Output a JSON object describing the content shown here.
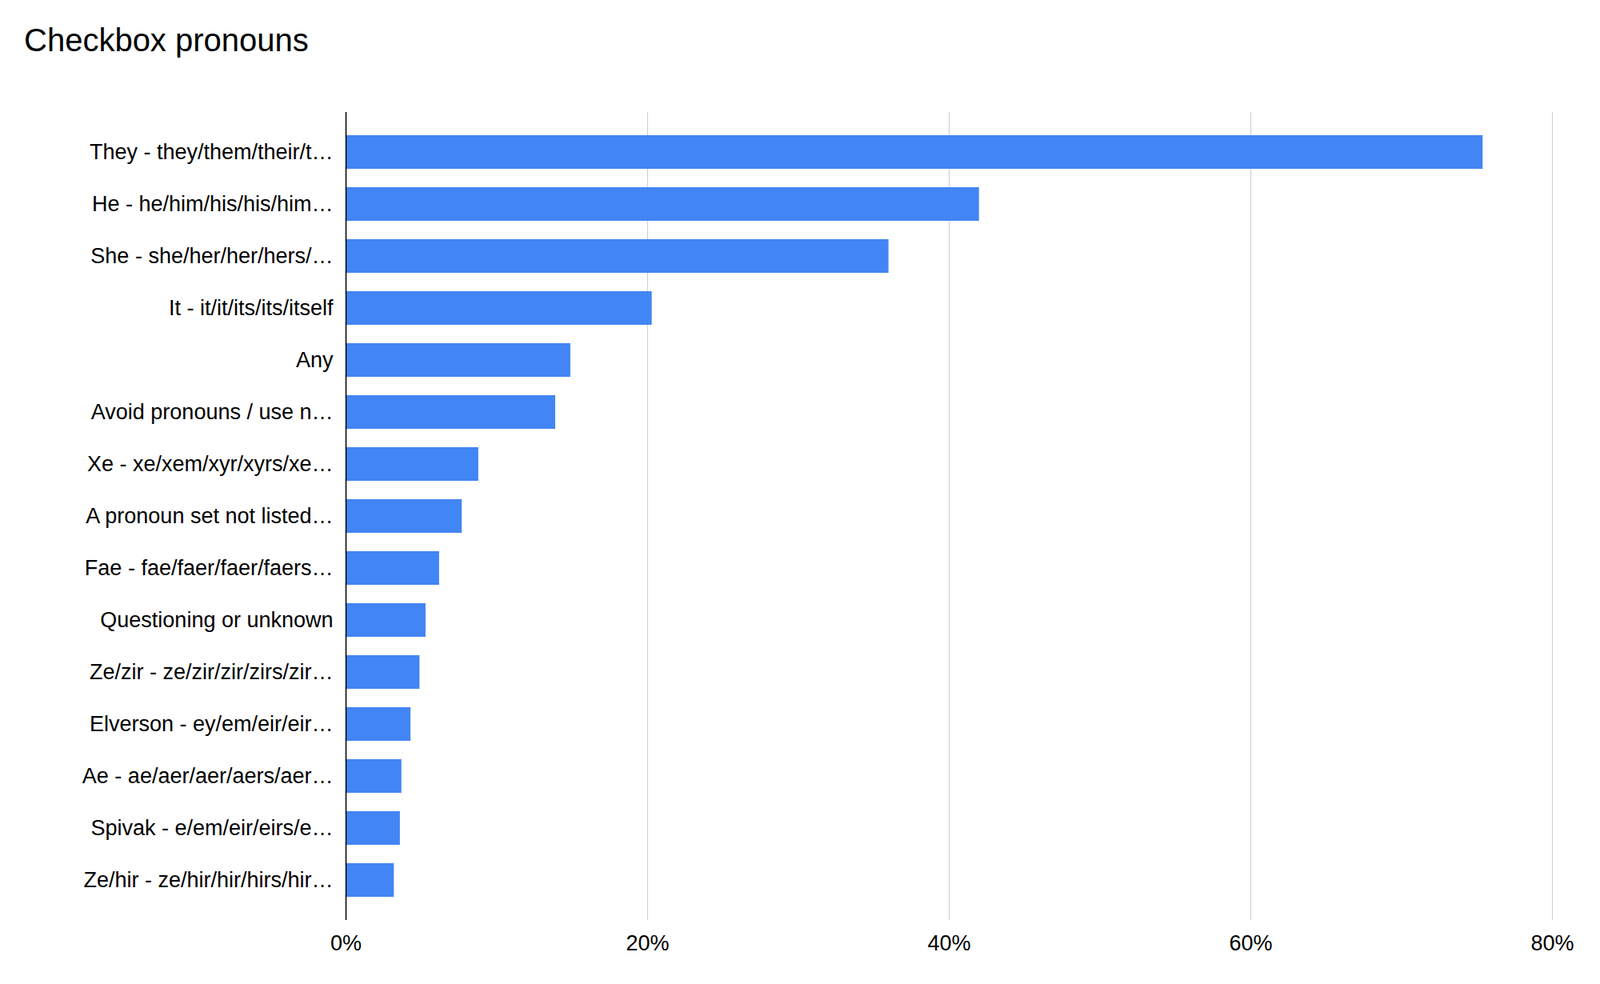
{
  "chart_data": {
    "type": "bar",
    "title": "Checkbox pronouns",
    "orientation": "horizontal",
    "categories": [
      "They - they/them/their/t…",
      "He - he/him/his/his/him…",
      "She - she/her/her/hers/…",
      "It - it/it/its/its/itself",
      "Any",
      "Avoid pronouns / use n…",
      "Xe - xe/xem/xyr/xyrs/xe…",
      "A pronoun set not listed…",
      "Fae - fae/faer/faer/faers…",
      "Questioning or unknown",
      "Ze/zir - ze/zir/zir/zirs/zir…",
      "Elverson - ey/em/eir/eir…",
      "Ae - ae/aer/aer/aers/aer…",
      "Spivak - e/em/eir/eirs/e…",
      "Ze/hir - ze/hir/hir/hirs/hir…"
    ],
    "values": [
      75.4,
      42.0,
      36.0,
      20.3,
      14.9,
      13.9,
      8.8,
      7.7,
      6.2,
      5.3,
      4.9,
      4.3,
      3.7,
      3.6,
      3.2
    ],
    "color": "#4285f4",
    "xlim": [
      0,
      80
    ],
    "xticks": [
      {
        "value": 0,
        "label": "0%"
      },
      {
        "value": 20,
        "label": "20%"
      },
      {
        "value": 40,
        "label": "40%"
      },
      {
        "value": 60,
        "label": "60%"
      },
      {
        "value": 80,
        "label": "80%"
      }
    ],
    "grid": true
  }
}
